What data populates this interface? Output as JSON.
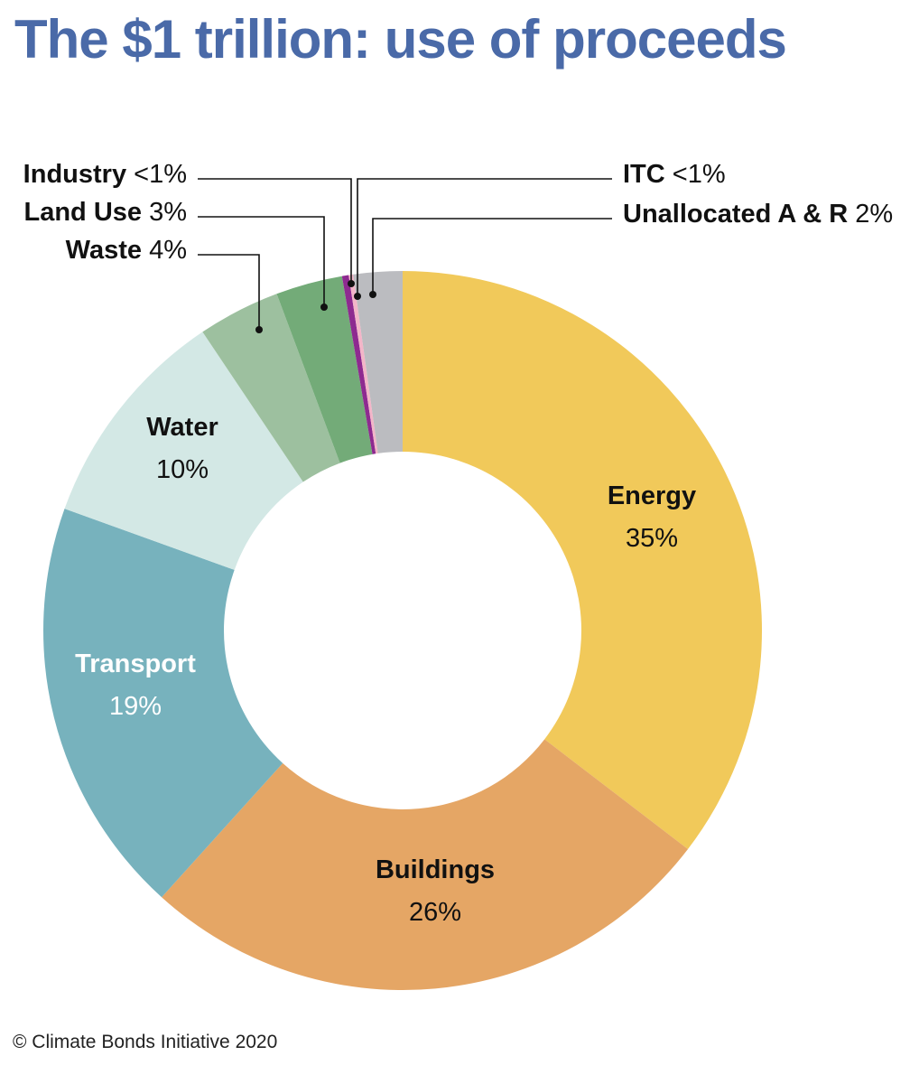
{
  "header": {
    "title": "The $1 trillion: use of proceeds"
  },
  "footer": {
    "credit": "© Climate Bonds Initiative 2020"
  },
  "chart_data": {
    "type": "pie",
    "title": "The $1 trillion: use of proceeds",
    "slices": [
      {
        "name": "Energy",
        "value": 35.4,
        "label": "35%",
        "color": "#f1c95a",
        "text_color": "#111111"
      },
      {
        "name": "Buildings",
        "value": 26.3,
        "label": "26%",
        "color": "#e5a665",
        "text_color": "#111111"
      },
      {
        "name": "Transport",
        "value": 18.8,
        "label": "19%",
        "color": "#77b2bd",
        "text_color": "#ffffff"
      },
      {
        "name": "Water",
        "value": 10.1,
        "label": "10%",
        "color": "#d3e8e5",
        "text_color": "#111111"
      },
      {
        "name": "Waste",
        "value": 3.7,
        "label": "4%",
        "color": "#9dc09f",
        "text_color": "#111111"
      },
      {
        "name": "Land Use",
        "value": 3.0,
        "label": "3%",
        "color": "#73ab78",
        "text_color": "#111111"
      },
      {
        "name": "Industry",
        "value": 0.3,
        "label": "<1%",
        "color": "#8e2a90",
        "text_color": "#111111"
      },
      {
        "name": "ITC",
        "value": 0.2,
        "label": "<1%",
        "color": "#f3b5c8",
        "text_color": "#111111"
      },
      {
        "name": "Unallocated A & R",
        "value": 2.2,
        "label": "2%",
        "color": "#bbbcc0",
        "text_color": "#111111"
      }
    ]
  }
}
